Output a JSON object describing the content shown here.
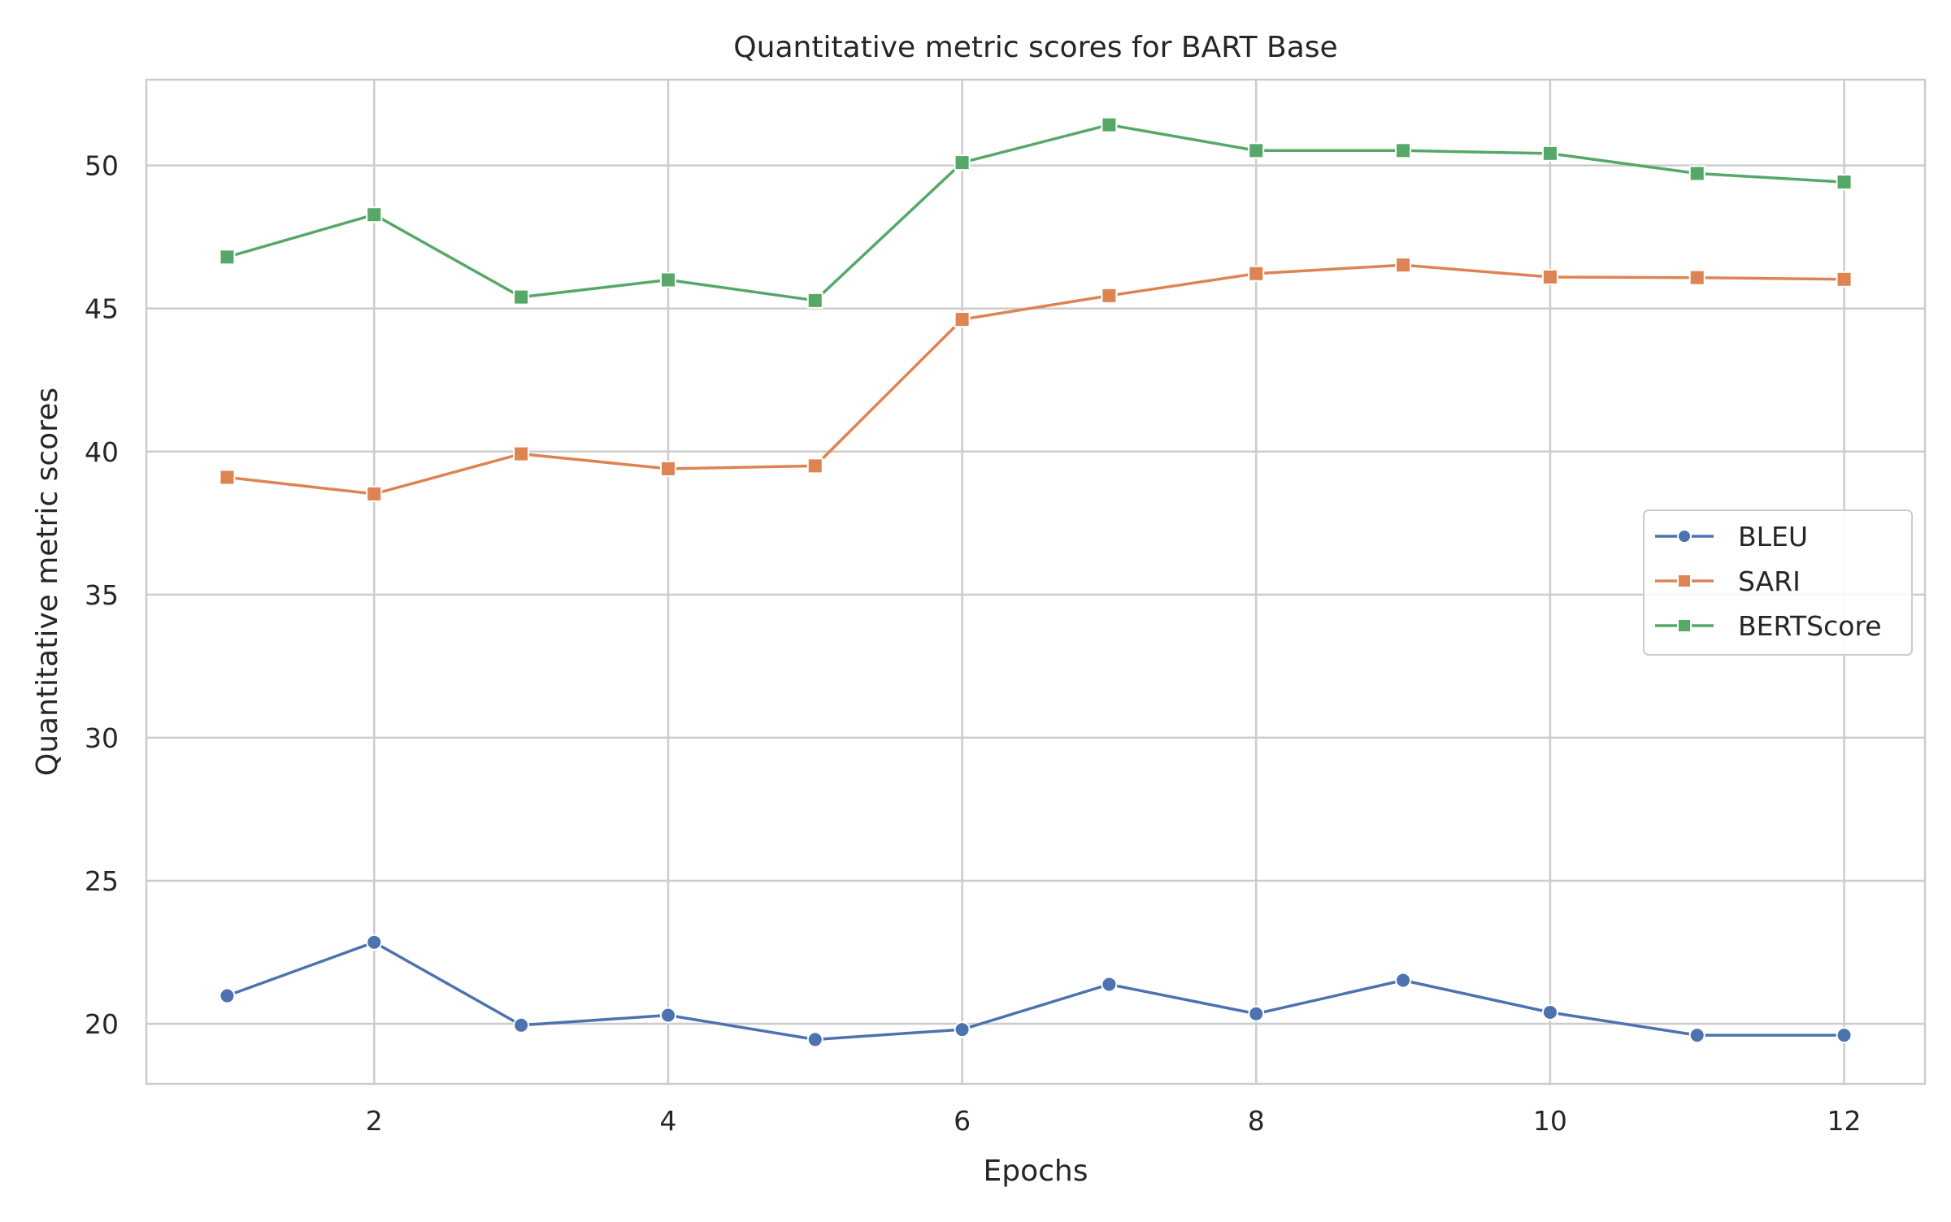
{
  "chart_data": {
    "type": "line",
    "title": "Quantitative metric scores for BART Base",
    "xlabel": "Epochs",
    "ylabel": "Quantitative metric scores",
    "x": [
      1,
      2,
      3,
      4,
      5,
      6,
      7,
      8,
      9,
      10,
      11,
      12
    ],
    "xlim": [
      0.45,
      12.55
    ],
    "ylim": [
      17.9,
      53.0
    ],
    "xticks": [
      2,
      4,
      6,
      8,
      10,
      12
    ],
    "yticks": [
      20,
      25,
      30,
      35,
      40,
      45,
      50
    ],
    "grid": true,
    "legend_position": "center-right",
    "series": [
      {
        "name": "BLEU",
        "marker": "circle",
        "color": "#4c72b0",
        "values": [
          20.98,
          22.85,
          19.95,
          20.3,
          19.45,
          19.8,
          21.38,
          20.35,
          21.52,
          20.4,
          19.6,
          19.6
        ]
      },
      {
        "name": "SARI",
        "marker": "square",
        "color": "#dd8452",
        "values": [
          39.1,
          38.52,
          39.92,
          39.4,
          39.5,
          44.62,
          45.45,
          46.22,
          46.52,
          46.1,
          46.08,
          46.02
        ]
      },
      {
        "name": "BERTScore",
        "marker": "square",
        "color": "#55a868",
        "values": [
          46.8,
          48.28,
          45.4,
          46.0,
          45.28,
          50.1,
          51.42,
          50.52,
          50.52,
          50.42,
          49.72,
          49.42
        ]
      }
    ]
  }
}
